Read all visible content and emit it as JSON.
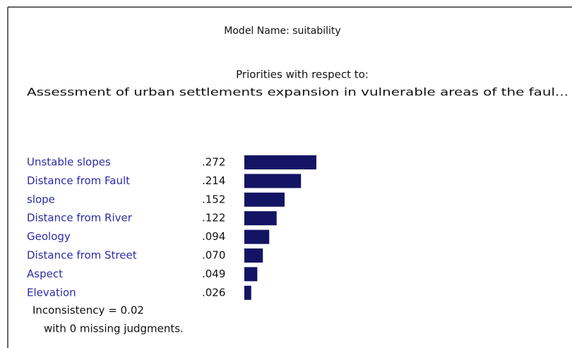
{
  "chart_data": {
    "type": "bar",
    "title": "Model Name: suitability",
    "subtitle": "Priorities with respect to:",
    "goal": "Assessment of urban settlements expansion in vulnerable areas of the faul...",
    "categories": [
      "Unstable slopes",
      "Distance from Fault",
      "slope",
      "Distance from River",
      "Geology",
      "Distance from Street",
      "Aspect",
      "Elevation"
    ],
    "values": [
      0.272,
      0.214,
      0.152,
      0.122,
      0.094,
      0.07,
      0.049,
      0.026
    ],
    "value_labels": [
      ".272",
      ".214",
      ".152",
      ".122",
      ".094",
      ".070",
      ".049",
      ".026"
    ],
    "color": "#141464",
    "notes": [
      "Inconsistency = 0.02",
      "with 0  missing judgments."
    ]
  }
}
